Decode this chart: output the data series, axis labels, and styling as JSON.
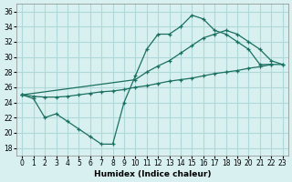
{
  "xlabel": "Humidex (Indice chaleur)",
  "bg_color": "#d8f0f0",
  "grid_color": "#b0d8d8",
  "line_color": "#1a7060",
  "xlim": [
    -0.5,
    23.5
  ],
  "ylim": [
    17,
    37
  ],
  "yticks": [
    18,
    20,
    22,
    24,
    26,
    28,
    30,
    32,
    34,
    36
  ],
  "xticks": [
    0,
    1,
    2,
    3,
    4,
    5,
    6,
    7,
    8,
    9,
    10,
    11,
    12,
    13,
    14,
    15,
    16,
    17,
    18,
    19,
    20,
    21,
    22,
    23
  ],
  "line1_x": [
    0,
    1,
    2,
    3,
    4,
    5,
    6,
    7,
    8,
    9,
    10,
    11,
    12,
    13,
    14,
    15,
    16,
    17,
    18,
    19,
    20,
    21,
    22
  ],
  "line1_y": [
    25,
    24.5,
    22,
    22.5,
    21.5,
    20.5,
    19.5,
    18.5,
    18.5,
    24,
    27.5,
    31,
    33,
    33,
    34,
    35.5,
    35,
    33.5,
    33,
    32,
    31,
    29,
    29
  ],
  "line2_x": [
    0,
    10,
    11,
    12,
    13,
    14,
    15,
    16,
    17,
    18,
    19,
    20,
    21,
    22,
    23
  ],
  "line2_y": [
    25,
    27,
    28.0,
    28.8,
    29.5,
    30.5,
    31.5,
    32.5,
    33.0,
    33.5,
    33.0,
    32.0,
    31.0,
    29.5,
    29.0
  ],
  "line3_x": [
    0,
    1,
    2,
    3,
    4,
    5,
    6,
    7,
    8,
    9,
    10,
    11,
    12,
    13,
    14,
    15,
    16,
    17,
    18,
    19,
    20,
    21,
    22,
    23
  ],
  "line3_y": [
    25,
    24.8,
    24.7,
    24.7,
    24.8,
    25.0,
    25.2,
    25.4,
    25.5,
    25.7,
    26.0,
    26.2,
    26.5,
    26.8,
    27.0,
    27.2,
    27.5,
    27.8,
    28.0,
    28.2,
    28.5,
    28.7,
    29.0,
    29.0
  ]
}
